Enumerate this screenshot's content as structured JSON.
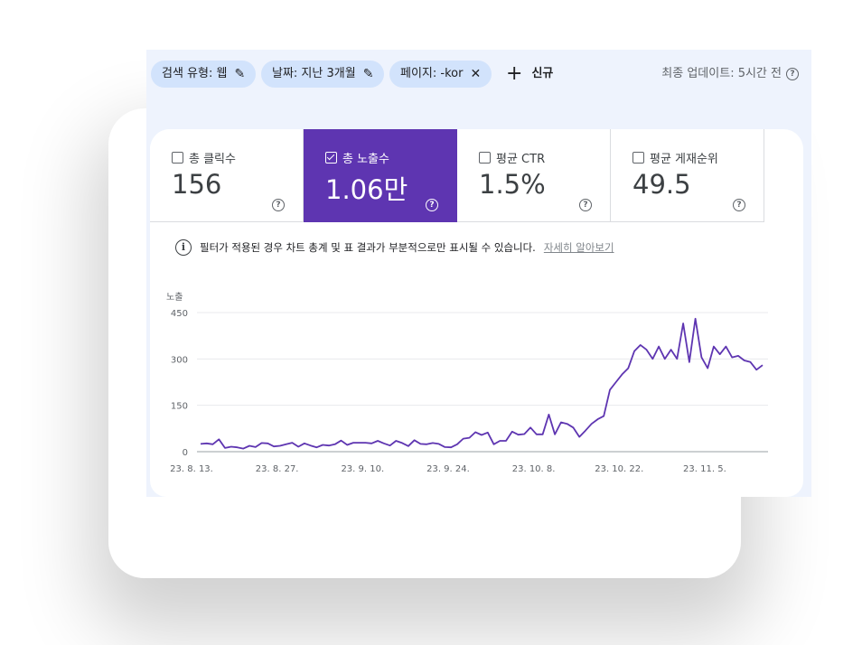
{
  "filters": [
    {
      "label": "검색 유형: 웹",
      "icon": "pencil-icon"
    },
    {
      "label": "날짜: 지난 3개월",
      "icon": "pencil-icon"
    },
    {
      "label": "페이지: -kor",
      "icon": "close-icon"
    }
  ],
  "new_filter": {
    "icon": "plus-icon",
    "label": "신규"
  },
  "last_updated": "최종 업데이트: 5시간 전",
  "metrics": [
    {
      "label": "총 클릭수",
      "value": "156",
      "checked": false
    },
    {
      "label": "총 노출수",
      "value": "1.06만",
      "checked": true
    },
    {
      "label": "평균 CTR",
      "value": "1.5%",
      "checked": false
    },
    {
      "label": "평균 게재순위",
      "value": "49.5",
      "checked": false
    }
  ],
  "notice": {
    "text": "필터가 적용된 경우 차트 총계 및 표 결과가 부분적으로만 표시될 수 있습니다.",
    "link": "자세히 알아보기"
  },
  "colors": {
    "accent": "#5e35b1",
    "line": "#5e35b1",
    "chip": "#d2e3fc"
  },
  "chart_data": {
    "type": "line",
    "ylabel": "노출",
    "ylim": [
      0,
      450
    ],
    "yticks": [
      0,
      150,
      300,
      450
    ],
    "xticks": [
      "23. 8. 13.",
      "23. 8. 27.",
      "23. 9. 10.",
      "23. 9. 24.",
      "23. 10. 8.",
      "23. 10. 22.",
      "23. 11. 5."
    ],
    "grid": true,
    "series": [
      {
        "values": [
          25,
          27,
          24,
          40,
          12,
          16,
          14,
          10,
          19,
          15,
          28,
          27,
          17,
          19,
          24,
          29,
          16,
          27,
          20,
          14,
          22,
          20,
          24,
          36,
          22,
          29,
          29,
          29,
          27,
          35,
          27,
          20,
          35,
          28,
          18,
          37,
          25,
          24,
          28,
          25,
          15,
          14,
          24,
          42,
          45,
          63,
          54,
          62,
          24,
          35,
          35,
          65,
          55,
          57,
          78,
          56,
          56,
          120,
          56,
          95,
          90,
          78,
          48,
          68,
          90,
          105,
          115,
          200,
          225,
          250,
          270,
          325,
          345,
          330,
          300,
          340,
          300,
          330,
          300,
          415,
          290,
          430,
          305,
          270,
          340,
          315,
          340,
          305,
          310,
          295,
          290,
          265,
          280
        ]
      }
    ]
  }
}
